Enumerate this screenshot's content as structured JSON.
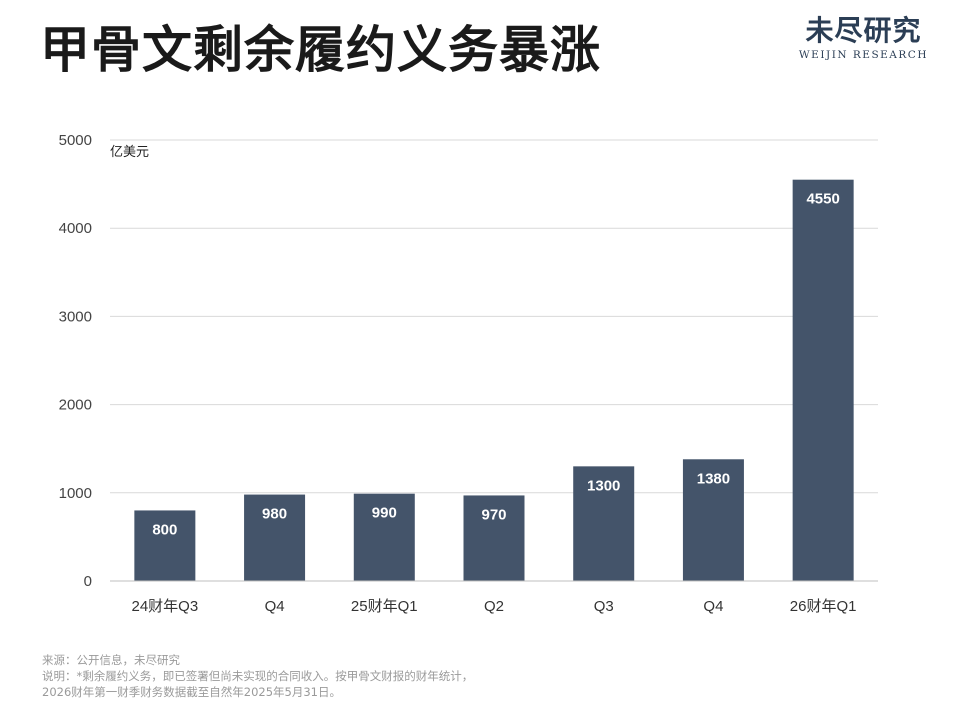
{
  "header": {
    "title": "甲骨文剩余履约义务暴涨",
    "logo_cn": "未尽研究",
    "logo_en": "WEIJIN RESEARCH"
  },
  "chart_data": {
    "type": "bar",
    "title": "甲骨文剩余履约义务暴涨",
    "categories": [
      "24财年Q3",
      "Q4",
      "25财年Q1",
      "Q2",
      "Q3",
      "Q4",
      "26财年Q1"
    ],
    "values": [
      800,
      980,
      990,
      970,
      1300,
      1380,
      4550
    ],
    "unit": "亿美元",
    "ylim": [
      0,
      5000
    ],
    "yticks": [
      0,
      1000,
      2000,
      3000,
      4000,
      5000
    ],
    "bar_color": "#44546a",
    "label_color": "#ffffff",
    "grid": true,
    "legend": "none"
  },
  "footer": {
    "source": "来源：公开信息，未尽研究",
    "note_line1": "说明：*剩余履约义务，即已签署但尚未实现的合同收入。按甲骨文财报的财年统计，",
    "note_line2": "2026财年第一财季财务数据截至自然年2025年5月31日。"
  }
}
